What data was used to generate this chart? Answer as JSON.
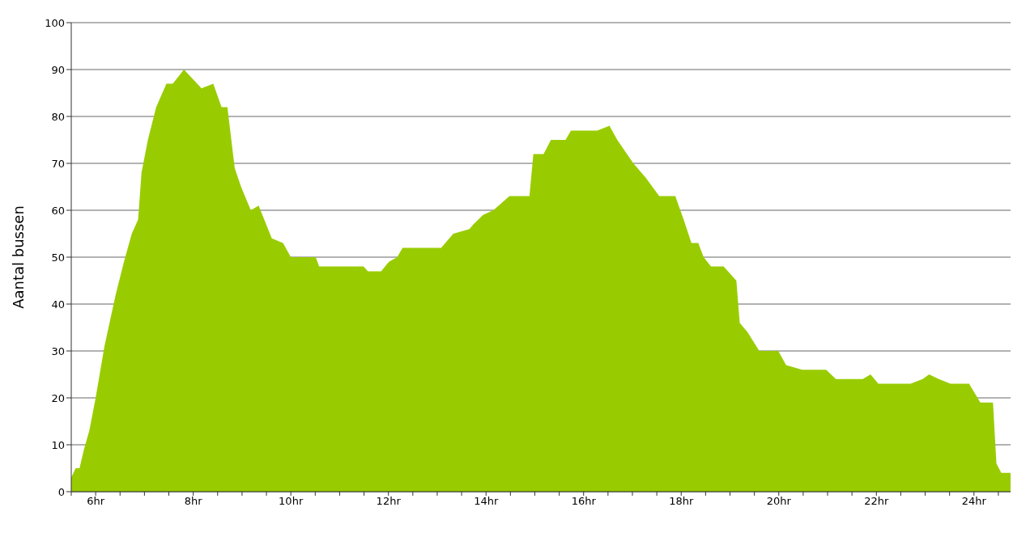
{
  "chart_data": {
    "type": "area",
    "ylabel": "Aantal bussen",
    "x": [
      5.5,
      5.59,
      5.67,
      5.76,
      5.87,
      6.0,
      6.18,
      6.41,
      6.58,
      6.74,
      6.87,
      6.94,
      7.07,
      7.24,
      7.45,
      7.58,
      7.81,
      8.17,
      8.41,
      8.58,
      8.7,
      8.85,
      8.98,
      9.18,
      9.34,
      9.61,
      9.84,
      10.0,
      10.51,
      10.58,
      11.49,
      11.58,
      11.85,
      12.01,
      12.18,
      12.29,
      13.08,
      13.33,
      13.66,
      13.74,
      13.94,
      14.15,
      14.48,
      14.89,
      14.97,
      15.18,
      15.33,
      15.63,
      15.74,
      16.28,
      16.53,
      16.69,
      17.02,
      17.27,
      17.55,
      17.88,
      18.05,
      18.21,
      18.35,
      18.46,
      18.61,
      18.87,
      19.13,
      19.2,
      19.36,
      19.6,
      19.99,
      20.15,
      20.48,
      20.97,
      21.17,
      21.72,
      21.88,
      22.04,
      22.7,
      22.95,
      23.08,
      23.28,
      23.52,
      23.9,
      24.13,
      24.39,
      24.46,
      24.56,
      24.75
    ],
    "series": [
      {
        "color": "#99cc00",
        "values": [
          3,
          5,
          5,
          9,
          13,
          20,
          31,
          42,
          49,
          55,
          58,
          68,
          75,
          82,
          87,
          87,
          90,
          86,
          87,
          82,
          82,
          69,
          65,
          60,
          61,
          54,
          53,
          50,
          50,
          48,
          48,
          47,
          47,
          49,
          50,
          52,
          52,
          55,
          56,
          57,
          59,
          60,
          63,
          63,
          72,
          72,
          75,
          75,
          77,
          77,
          78,
          75,
          70,
          67,
          63,
          63,
          58,
          53,
          53,
          50,
          48,
          48,
          45,
          36,
          34,
          30,
          30,
          27,
          26,
          26,
          24,
          24,
          25,
          23,
          23,
          24,
          25,
          24,
          23,
          23,
          19,
          19,
          6,
          4,
          4
        ]
      }
    ],
    "xlim": [
      5.5,
      24.75
    ],
    "xticks": [
      {
        "value": 5.5,
        "label": null
      },
      {
        "value": 6,
        "label": "6hr"
      },
      {
        "value": 6.5,
        "label": null
      },
      {
        "value": 7,
        "label": null
      },
      {
        "value": 7.5,
        "label": null
      },
      {
        "value": 8,
        "label": "8hr"
      },
      {
        "value": 8.5,
        "label": null
      },
      {
        "value": 9,
        "label": null
      },
      {
        "value": 9.5,
        "label": null
      },
      {
        "value": 10,
        "label": "10hr"
      },
      {
        "value": 10.5,
        "label": null
      },
      {
        "value": 11,
        "label": null
      },
      {
        "value": 11.5,
        "label": null
      },
      {
        "value": 12,
        "label": "12hr"
      },
      {
        "value": 12.5,
        "label": null
      },
      {
        "value": 13,
        "label": null
      },
      {
        "value": 13.5,
        "label": null
      },
      {
        "value": 14,
        "label": "14hr"
      },
      {
        "value": 14.5,
        "label": null
      },
      {
        "value": 15,
        "label": null
      },
      {
        "value": 15.5,
        "label": null
      },
      {
        "value": 16,
        "label": "16hr"
      },
      {
        "value": 16.5,
        "label": null
      },
      {
        "value": 17,
        "label": null
      },
      {
        "value": 17.5,
        "label": null
      },
      {
        "value": 18,
        "label": "18hr"
      },
      {
        "value": 18.5,
        "label": null
      },
      {
        "value": 19,
        "label": null
      },
      {
        "value": 19.5,
        "label": null
      },
      {
        "value": 20,
        "label": "20hr"
      },
      {
        "value": 20.5,
        "label": null
      },
      {
        "value": 21,
        "label": null
      },
      {
        "value": 21.5,
        "label": null
      },
      {
        "value": 22,
        "label": "22hr"
      },
      {
        "value": 22.5,
        "label": null
      },
      {
        "value": 23,
        "label": null
      },
      {
        "value": 23.5,
        "label": null
      },
      {
        "value": 24,
        "label": "24hr"
      },
      {
        "value": 24.5,
        "label": null
      }
    ],
    "ylim": [
      0,
      100
    ],
    "yticks": [
      0,
      10,
      20,
      30,
      40,
      50,
      60,
      70,
      80,
      90,
      100
    ],
    "grid": "y",
    "legend": false
  }
}
